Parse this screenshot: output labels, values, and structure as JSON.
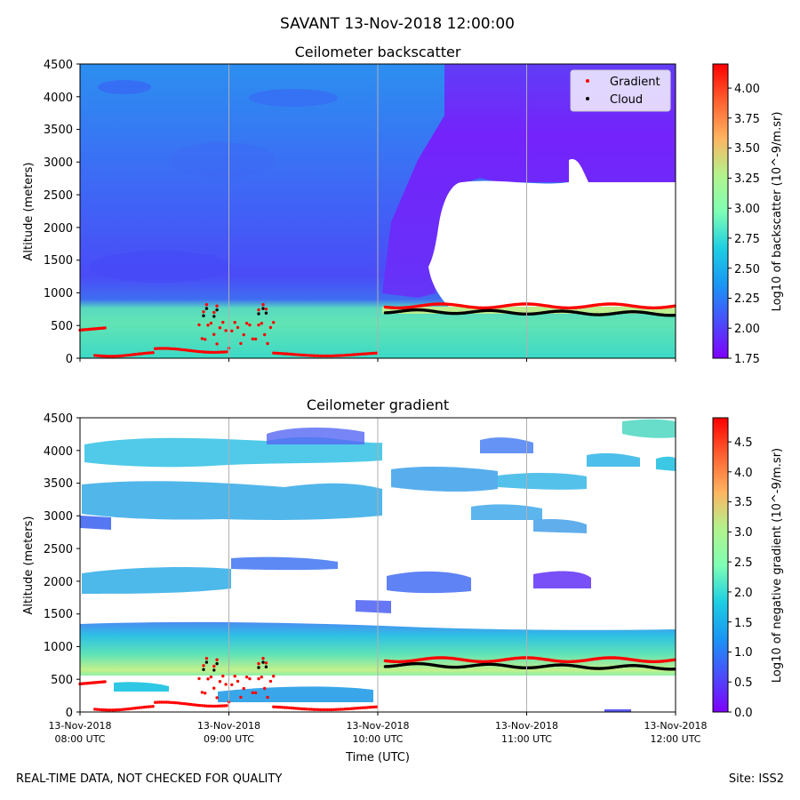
{
  "suptitle": "SAVANT 13-Nov-2018 12:00:00",
  "footer_left": "REAL-TIME DATA, NOT CHECKED FOR QUALITY",
  "footer_right": "Site: ISS2",
  "colors": {
    "gradient_marker": "#ff0000",
    "cloud_marker": "#000000",
    "gridline": "#b0b0b0"
  },
  "chart_data": [
    {
      "type": "heatmap",
      "title": "Ceilometer backscatter",
      "ylabel": "Altitude (meters)",
      "xlabel": "",
      "ylim": [
        0,
        4500
      ],
      "yticks": [
        "0",
        "500",
        "1000",
        "1500",
        "2000",
        "2500",
        "3000",
        "3500",
        "4000",
        "4500"
      ],
      "xticks": [
        {
          "line1": "13-Nov-2018",
          "line2": "08:00 UTC"
        },
        {
          "line1": "13-Nov-2018",
          "line2": "09:00 UTC"
        },
        {
          "line1": "13-Nov-2018",
          "line2": "10:00 UTC"
        },
        {
          "line1": "13-Nov-2018",
          "line2": "11:00 UTC"
        },
        {
          "line1": "13-Nov-2018",
          "line2": "12:00 UTC"
        }
      ],
      "x_labels_shown": false,
      "grid": "vertical at hourly ticks",
      "colormap": "rainbow",
      "colorbar": {
        "label": "Log10 of backscatter (10^-9/m.sr)",
        "range": [
          1.75,
          4.2
        ],
        "ticks": [
          "1.75",
          "2.00",
          "2.25",
          "2.50",
          "2.75",
          "3.00",
          "3.25",
          "3.50",
          "3.75",
          "4.00"
        ]
      },
      "legend": {
        "position": "top-right",
        "entries": [
          "Gradient",
          "Cloud"
        ]
      },
      "series": [
        {
          "name": "Gradient",
          "approx_altitude_m": "0-800 before 10:00 UTC, about 800 after 10:00 UTC"
        },
        {
          "name": "Cloud",
          "approx_altitude_m": "about 650-740 after 10:00 UTC; scattered near 650-700 at 08:50 and 09:15 UTC"
        }
      ]
    },
    {
      "type": "heatmap",
      "title": "Ceilometer gradient",
      "ylabel": "Altitude (meters)",
      "xlabel": "Time (UTC)",
      "ylim": [
        0,
        4500
      ],
      "yticks": [
        "0",
        "500",
        "1000",
        "1500",
        "2000",
        "2500",
        "3000",
        "3500",
        "4000",
        "4500"
      ],
      "xticks": [
        {
          "line1": "13-Nov-2018",
          "line2": "08:00 UTC"
        },
        {
          "line1": "13-Nov-2018",
          "line2": "09:00 UTC"
        },
        {
          "line1": "13-Nov-2018",
          "line2": "10:00 UTC"
        },
        {
          "line1": "13-Nov-2018",
          "line2": "11:00 UTC"
        },
        {
          "line1": "13-Nov-2018",
          "line2": "12:00 UTC"
        }
      ],
      "x_labels_shown": true,
      "grid": "vertical at hourly ticks",
      "colormap": "rainbow",
      "colorbar": {
        "label": "Log10 of negative gradient (10^-9/m.sr)",
        "range": [
          0.0,
          4.9
        ],
        "ticks": [
          "0.0",
          "0.5",
          "1.0",
          "1.5",
          "2.0",
          "2.5",
          "3.0",
          "3.5",
          "4.0",
          "4.5"
        ]
      }
    }
  ]
}
